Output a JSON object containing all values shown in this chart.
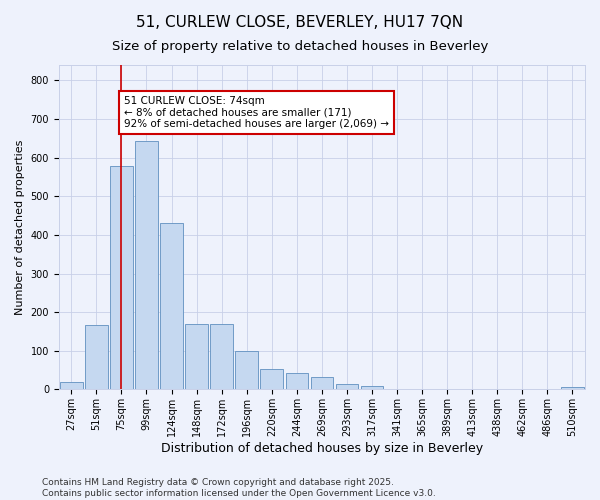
{
  "title1": "51, CURLEW CLOSE, BEVERLEY, HU17 7QN",
  "title2": "Size of property relative to detached houses in Beverley",
  "xlabel": "Distribution of detached houses by size in Beverley",
  "ylabel": "Number of detached properties",
  "categories": [
    "27sqm",
    "51sqm",
    "75sqm",
    "99sqm",
    "124sqm",
    "148sqm",
    "172sqm",
    "196sqm",
    "220sqm",
    "244sqm",
    "269sqm",
    "293sqm",
    "317sqm",
    "341sqm",
    "365sqm",
    "389sqm",
    "413sqm",
    "438sqm",
    "462sqm",
    "486sqm",
    "510sqm"
  ],
  "values": [
    20,
    168,
    578,
    642,
    432,
    170,
    170,
    100,
    52,
    42,
    33,
    15,
    10,
    2,
    2,
    2,
    1,
    1,
    1,
    1,
    5
  ],
  "bar_color": "#c5d8f0",
  "bar_edge_color": "#6090c0",
  "vline_x": 2.0,
  "vline_color": "#cc0000",
  "annotation_text": "51 CURLEW CLOSE: 74sqm\n← 8% of detached houses are smaller (171)\n92% of semi-detached houses are larger (2,069) →",
  "annotation_box_color": "#ffffff",
  "annotation_box_edge": "#cc0000",
  "ylim": [
    0,
    840
  ],
  "yticks": [
    0,
    100,
    200,
    300,
    400,
    500,
    600,
    700,
    800
  ],
  "background_color": "#eef2fc",
  "grid_color": "#c8d0e8",
  "footer1": "Contains HM Land Registry data © Crown copyright and database right 2025.",
  "footer2": "Contains public sector information licensed under the Open Government Licence v3.0.",
  "title1_fontsize": 11,
  "title2_fontsize": 9.5,
  "xlabel_fontsize": 9,
  "ylabel_fontsize": 8,
  "tick_fontsize": 7,
  "annot_fontsize": 7.5,
  "footer_fontsize": 6.5
}
